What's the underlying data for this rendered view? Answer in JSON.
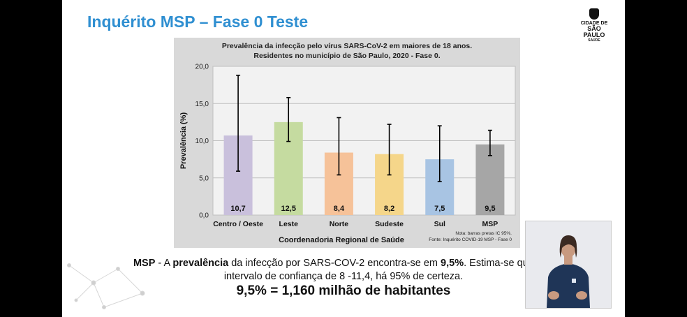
{
  "slide": {
    "title": "Inquérito MSP – Fase 0 Teste",
    "logo": {
      "line1": "CIDADE DE",
      "line2": "SÃO PAULO",
      "line3": "SAÚDE"
    }
  },
  "chart_data": {
    "type": "bar",
    "title": "Prevalência da infecção pelo vírus SARS-CoV-2 em maiores de 18 anos.",
    "subtitle": "Residentes no município de São Paulo, 2020 - Fase 0.",
    "xlabel": "Coordenadoria Regional de Saúde",
    "ylabel": "Prevalência (%)",
    "ylim": [
      0,
      20
    ],
    "yticks": [
      "0,0",
      "5,0",
      "10,0",
      "15,0",
      "20,0"
    ],
    "grid": true,
    "categories": [
      "Centro / Oeste",
      "Leste",
      "Norte",
      "Sudeste",
      "Sul",
      "MSP"
    ],
    "values": [
      10.7,
      12.5,
      8.4,
      8.2,
      7.5,
      9.5
    ],
    "value_labels": [
      "10,7",
      "12,5",
      "8,4",
      "8,2",
      "7,5",
      "9,5"
    ],
    "ci_low": [
      5.9,
      9.9,
      5.4,
      5.4,
      4.5,
      8.0
    ],
    "ci_high": [
      18.8,
      15.8,
      13.1,
      12.2,
      12.0,
      11.4
    ],
    "colors": [
      "#c9c0dc",
      "#c5dba0",
      "#f6c299",
      "#f5d68a",
      "#a8c4e3",
      "#a6a6a6"
    ],
    "notes": [
      "Nota: barras pretas IC 95%.",
      "Fonte: Inquérito COVID-19 MSP - Fase 0"
    ]
  },
  "summary": {
    "msp": "MSP",
    "dash_a": " - A ",
    "prevalence_word": "prevalência",
    "text1": " da infecção por SARS-COV-2 encontra-se em ",
    "value": "9,5%",
    "text2": ". Estima-se que, em",
    "line2": "intervalo de confiança de 8 -11,4, há 95% de certeza.",
    "headline": "9,5% = 1,160 milhão de habitantes"
  },
  "colors": {
    "title_blue": "#2f8fd1",
    "video_shirt": "#1f3557"
  }
}
